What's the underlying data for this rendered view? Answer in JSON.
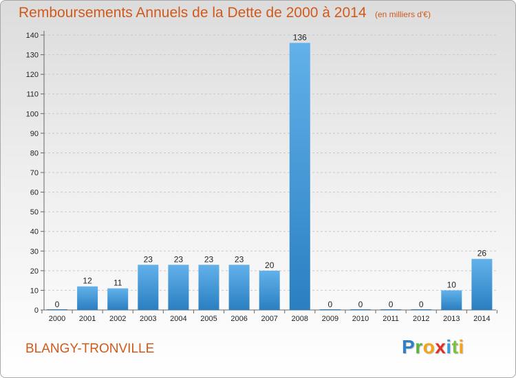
{
  "header": {
    "title": "Remboursements Annuels de la Dette de 2000 à 2014",
    "unit": "(en milliers d'€)"
  },
  "commune": "BLANGY-TRONVILLE",
  "logo": {
    "text": "Proxiti",
    "letters": [
      "P",
      "r",
      "o",
      "x",
      "i",
      "t",
      "i"
    ],
    "colors": [
      "#2f7fc9",
      "#5bb33a",
      "#f2a31b",
      "#e0302a",
      "#3b9be0",
      "#7cc142",
      "#f2a31b"
    ]
  },
  "colors": {
    "bar_light": "#62b1ea",
    "bar_dark": "#2a7fc1",
    "title": "#d05a1c",
    "axis_text": "#222222",
    "grid": "#c8c8c8"
  },
  "chart_data": {
    "type": "bar",
    "title": "Remboursements Annuels de la Dette de 2000 à 2014",
    "categories": [
      "2000",
      "2001",
      "2002",
      "2003",
      "2004",
      "2005",
      "2006",
      "2007",
      "2008",
      "2009",
      "2010",
      "2011",
      "2012",
      "2013",
      "2014"
    ],
    "values": [
      0,
      12,
      11,
      23,
      23,
      23,
      23,
      20,
      136,
      0,
      0,
      0,
      0,
      10,
      26
    ],
    "ylim": [
      0,
      140
    ],
    "yticks": [
      0,
      10,
      20,
      30,
      40,
      50,
      60,
      70,
      80,
      90,
      100,
      110,
      120,
      130,
      140
    ],
    "grid": "horizontal dashed",
    "xlabel": "",
    "ylabel": ""
  }
}
